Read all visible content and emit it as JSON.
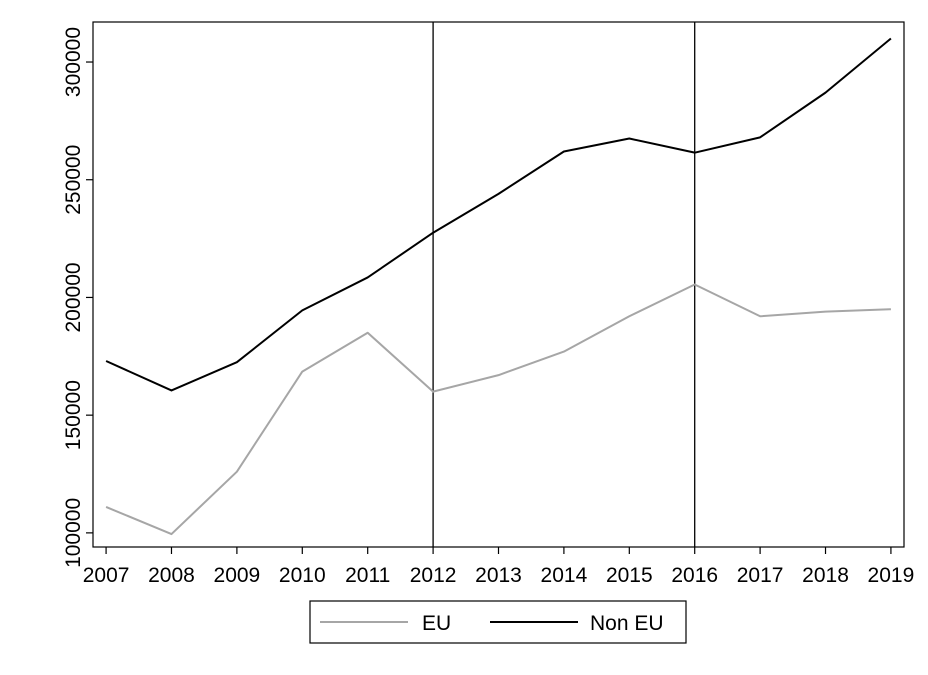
{
  "chart_data": {
    "type": "line",
    "title": "",
    "xlabel": "",
    "ylabel": "",
    "x": [
      2007,
      2008,
      2009,
      2010,
      2011,
      2012,
      2013,
      2014,
      2015,
      2016,
      2017,
      2018,
      2019
    ],
    "xlim": [
      2006.8,
      2019.2
    ],
    "ylim": [
      94000,
      317000
    ],
    "yticks": [
      100000,
      150000,
      200000,
      250000,
      300000
    ],
    "ytick_labels": [
      "100000",
      "150000",
      "200000",
      "250000",
      "300000"
    ],
    "xtick_labels": [
      "2007",
      "2008",
      "2009",
      "2010",
      "2011",
      "2012",
      "2013",
      "2014",
      "2015",
      "2016",
      "2017",
      "2018",
      "2019"
    ],
    "reference_lines_x": [
      2012,
      2016
    ],
    "grid": false,
    "legend_position": "bottom-center",
    "series": [
      {
        "name": "EU",
        "color": "#a6a6a6",
        "values": [
          111000,
          99500,
          126000,
          168500,
          185000,
          160000,
          167000,
          177000,
          192000,
          205500,
          192000,
          194000,
          195000
        ]
      },
      {
        "name": "Non EU",
        "color": "#000000",
        "values": [
          173000,
          160500,
          172500,
          194500,
          208500,
          227500,
          244000,
          262000,
          267500,
          261500,
          268000,
          287000,
          310000
        ]
      }
    ]
  }
}
